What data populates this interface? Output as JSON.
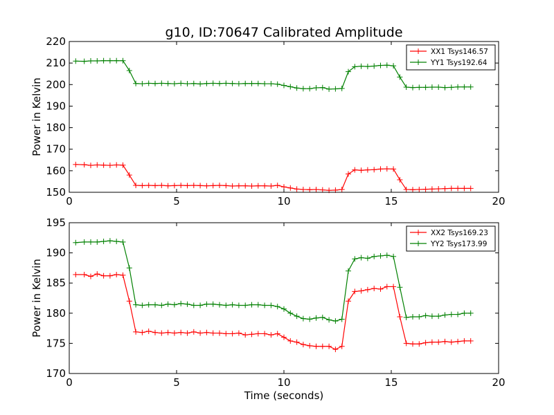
{
  "title": "g10, ID:70647 Calibrated Amplitude",
  "chart_data": [
    {
      "type": "line",
      "title": "g10, ID:70647 Calibrated Amplitude",
      "xlabel": "",
      "ylabel": "Power in Kelvin",
      "xlim": [
        0,
        20
      ],
      "ylim": [
        150,
        220
      ],
      "xticks": [
        0,
        5,
        10,
        15,
        20
      ],
      "yticks": [
        150,
        160,
        170,
        180,
        190,
        200,
        210,
        220
      ],
      "grid": false,
      "legend_position": "top-right",
      "marker": "+",
      "x": [
        0.3,
        0.7,
        1.0,
        1.3,
        1.6,
        1.9,
        2.2,
        2.5,
        2.8,
        3.1,
        3.4,
        3.7,
        4.0,
        4.3,
        4.6,
        4.9,
        5.2,
        5.5,
        5.8,
        6.1,
        6.4,
        6.7,
        7.0,
        7.3,
        7.6,
        7.9,
        8.2,
        8.5,
        8.8,
        9.1,
        9.4,
        9.7,
        10.0,
        10.3,
        10.6,
        10.9,
        11.2,
        11.5,
        11.8,
        12.1,
        12.4,
        12.7,
        13.0,
        13.3,
        13.6,
        13.9,
        14.2,
        14.5,
        14.8,
        15.1,
        15.4,
        15.7,
        16.0,
        16.3,
        16.6,
        16.9,
        17.2,
        17.5,
        17.8,
        18.1,
        18.4,
        18.7
      ],
      "series": [
        {
          "name": "XX1 Tsys146.57",
          "color": "#ff0000",
          "values": [
            162.9,
            162.8,
            162.5,
            162.7,
            162.6,
            162.5,
            162.7,
            162.6,
            158.0,
            153.2,
            153.1,
            153.2,
            153.1,
            153.2,
            153.0,
            153.1,
            153.2,
            153.1,
            153.2,
            153.1,
            153.0,
            153.1,
            153.2,
            153.1,
            152.9,
            153.0,
            153.0,
            152.9,
            153.0,
            153.0,
            152.9,
            153.2,
            152.5,
            152.0,
            151.5,
            151.3,
            151.2,
            151.3,
            151.1,
            150.9,
            151.0,
            151.3,
            158.5,
            160.4,
            160.2,
            160.4,
            160.5,
            160.8,
            160.9,
            160.8,
            155.8,
            151.3,
            151.2,
            151.3,
            151.4,
            151.5,
            151.6,
            151.7,
            151.8,
            151.8,
            151.8,
            151.8
          ]
        },
        {
          "name": "YY1 Tsys192.64",
          "color": "#008000",
          "values": [
            210.9,
            210.8,
            211.0,
            211.0,
            211.1,
            211.1,
            211.1,
            211.1,
            206.5,
            200.5,
            200.4,
            200.6,
            200.5,
            200.6,
            200.5,
            200.4,
            200.6,
            200.4,
            200.5,
            200.3,
            200.5,
            200.6,
            200.5,
            200.6,
            200.5,
            200.4,
            200.5,
            200.5,
            200.5,
            200.4,
            200.4,
            200.2,
            199.6,
            199.0,
            198.4,
            198.1,
            198.1,
            198.5,
            198.6,
            197.9,
            198.0,
            198.2,
            206.0,
            208.3,
            208.5,
            208.4,
            208.6,
            208.9,
            209.0,
            208.7,
            203.5,
            198.8,
            198.6,
            198.7,
            198.7,
            198.8,
            198.8,
            198.6,
            198.7,
            198.9,
            198.9,
            198.9
          ]
        }
      ]
    },
    {
      "type": "line",
      "title": "",
      "xlabel": "Time (seconds)",
      "ylabel": "Power in Kelvin",
      "xlim": [
        0,
        20
      ],
      "ylim": [
        170,
        195
      ],
      "xticks": [
        0,
        5,
        10,
        15,
        20
      ],
      "yticks": [
        170,
        175,
        180,
        185,
        190,
        195
      ],
      "grid": false,
      "legend_position": "top-right",
      "marker": "+",
      "x": [
        0.3,
        0.7,
        1.0,
        1.3,
        1.6,
        1.9,
        2.2,
        2.5,
        2.8,
        3.1,
        3.4,
        3.7,
        4.0,
        4.3,
        4.6,
        4.9,
        5.2,
        5.5,
        5.8,
        6.1,
        6.4,
        6.7,
        7.0,
        7.3,
        7.6,
        7.9,
        8.2,
        8.5,
        8.8,
        9.1,
        9.4,
        9.7,
        10.0,
        10.3,
        10.6,
        10.9,
        11.2,
        11.5,
        11.8,
        12.1,
        12.4,
        12.7,
        13.0,
        13.3,
        13.6,
        13.9,
        14.2,
        14.5,
        14.8,
        15.1,
        15.4,
        15.7,
        16.0,
        16.3,
        16.6,
        16.9,
        17.2,
        17.5,
        17.8,
        18.1,
        18.4,
        18.7
      ],
      "series": [
        {
          "name": "XX2 Tsys169.23",
          "color": "#ff0000",
          "values": [
            186.4,
            186.4,
            186.1,
            186.5,
            186.2,
            186.2,
            186.4,
            186.3,
            182.0,
            176.9,
            176.8,
            177.0,
            176.8,
            176.7,
            176.8,
            176.7,
            176.8,
            176.7,
            176.9,
            176.7,
            176.8,
            176.7,
            176.7,
            176.6,
            176.6,
            176.7,
            176.4,
            176.5,
            176.6,
            176.6,
            176.4,
            176.6,
            176.0,
            175.4,
            175.2,
            174.8,
            174.6,
            174.5,
            174.5,
            174.5,
            174.0,
            174.5,
            182.0,
            183.6,
            183.7,
            183.9,
            184.1,
            184.0,
            184.4,
            184.4,
            179.4,
            175.0,
            174.9,
            174.9,
            175.1,
            175.2,
            175.2,
            175.3,
            175.2,
            175.3,
            175.4,
            175.4
          ]
        },
        {
          "name": "YY2 Tsys173.99",
          "color": "#008000",
          "values": [
            191.7,
            191.8,
            191.8,
            191.8,
            191.9,
            192.0,
            191.9,
            191.8,
            187.5,
            181.4,
            181.3,
            181.4,
            181.4,
            181.3,
            181.5,
            181.4,
            181.6,
            181.5,
            181.3,
            181.3,
            181.5,
            181.5,
            181.4,
            181.3,
            181.4,
            181.3,
            181.3,
            181.4,
            181.4,
            181.3,
            181.3,
            181.1,
            180.7,
            180.0,
            179.5,
            179.1,
            179.0,
            179.2,
            179.3,
            178.9,
            178.7,
            179.0,
            187.0,
            189.0,
            189.2,
            189.1,
            189.4,
            189.5,
            189.6,
            189.4,
            184.3,
            179.3,
            179.4,
            179.4,
            179.6,
            179.5,
            179.5,
            179.7,
            179.8,
            179.8,
            180.0,
            180.0
          ]
        }
      ]
    }
  ]
}
